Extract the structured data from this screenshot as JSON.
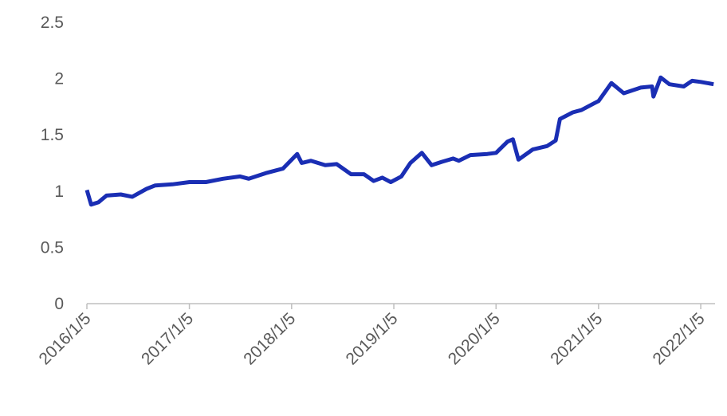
{
  "chart_data": {
    "type": "line",
    "x": [
      "2016/1/5",
      "2016/1/20",
      "2016/2/15",
      "2016/3/15",
      "2016/5/5",
      "2016/6/15",
      "2016/8/5",
      "2016/9/5",
      "2016/11/5",
      "2017/1/5",
      "2017/3/5",
      "2017/5/5",
      "2017/7/5",
      "2017/8/5",
      "2017/10/5",
      "2017/12/5",
      "2018/1/25",
      "2018/2/10",
      "2018/3/15",
      "2018/5/5",
      "2018/6/15",
      "2018/8/5",
      "2018/9/20",
      "2018/10/25",
      "2018/11/25",
      "2018/12/25",
      "2019/2/1",
      "2019/3/5",
      "2019/4/15",
      "2019/5/20",
      "2019/6/25",
      "2019/8/5",
      "2019/8/25",
      "2019/10/5",
      "2019/12/5",
      "2020/1/5",
      "2020/2/15",
      "2020/3/5",
      "2020/3/25",
      "2020/5/15",
      "2020/7/5",
      "2020/8/5",
      "2020/8/20",
      "2020/10/5",
      "2020/11/5",
      "2020/12/20",
      "2021/1/5",
      "2021/2/20",
      "2021/4/5",
      "2021/6/5",
      "2021/7/15",
      "2021/7/20",
      "2021/8/15",
      "2021/9/15",
      "2021/11/5",
      "2021/12/5",
      "2022/1/5",
      "2022/2/20"
    ],
    "series": [
      {
        "color": "#1a2eb4",
        "values": [
          1.01,
          0.88,
          0.9,
          0.96,
          0.97,
          0.95,
          1.02,
          1.05,
          1.06,
          1.08,
          1.08,
          1.11,
          1.13,
          1.11,
          1.16,
          1.2,
          1.33,
          1.25,
          1.27,
          1.23,
          1.24,
          1.15,
          1.15,
          1.09,
          1.12,
          1.08,
          1.13,
          1.25,
          1.34,
          1.23,
          1.26,
          1.29,
          1.27,
          1.32,
          1.33,
          1.34,
          1.44,
          1.46,
          1.28,
          1.37,
          1.4,
          1.45,
          1.64,
          1.7,
          1.72,
          1.78,
          1.8,
          1.96,
          1.87,
          1.92,
          1.93,
          1.84,
          2.01,
          1.95,
          1.93,
          1.98,
          1.97,
          1.95
        ]
      }
    ],
    "xlim": [
      "2016/1/5",
      "2022/2/25"
    ],
    "xticks": [
      "2016/1/5",
      "2017/1/5",
      "2018/1/5",
      "2019/1/5",
      "2020/1/5",
      "2021/1/5",
      "2022/1/5"
    ],
    "ylim": [
      0,
      2.5
    ],
    "yticks": [
      0,
      0.5,
      1,
      1.5,
      2,
      2.5
    ]
  }
}
